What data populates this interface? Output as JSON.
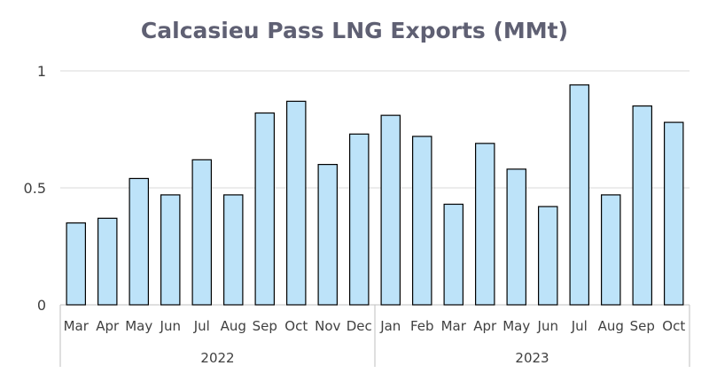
{
  "chart_data": {
    "type": "bar",
    "title": "Calcasieu Pass LNG Exports (MMt)",
    "xlabel": "",
    "ylabel": "",
    "ylim": [
      0,
      1
    ],
    "yticks": [
      {
        "value": 0,
        "label": "0"
      },
      {
        "value": 0.5,
        "label": "0.5"
      },
      {
        "value": 1,
        "label": "1"
      }
    ],
    "grid": true,
    "legend": "none",
    "bar_color": "#bde3f9",
    "bar_edge_color": "#000000",
    "categories": [
      "Mar",
      "Apr",
      "May",
      "Jun",
      "Jul",
      "Aug",
      "Sep",
      "Oct",
      "Nov",
      "Dec",
      "Jan",
      "Feb",
      "Mar",
      "Apr",
      "May",
      "Jun",
      "Jul",
      "Aug",
      "Sep",
      "Oct"
    ],
    "values": [
      0.35,
      0.37,
      0.54,
      0.47,
      0.62,
      0.47,
      0.82,
      0.87,
      0.6,
      0.73,
      0.81,
      0.72,
      0.43,
      0.69,
      0.58,
      0.42,
      0.94,
      0.47,
      0.85,
      0.78
    ],
    "groups": [
      {
        "label": "2022",
        "count": 10
      },
      {
        "label": "2023",
        "count": 10
      }
    ]
  }
}
